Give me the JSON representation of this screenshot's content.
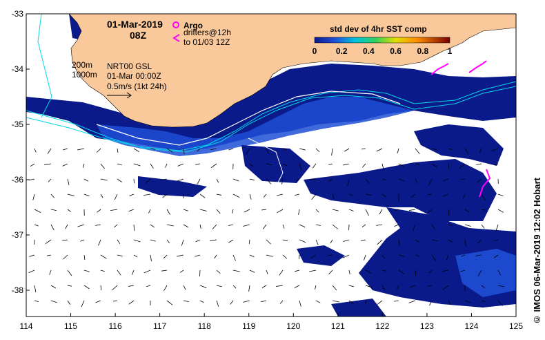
{
  "header": {
    "date": "01-Mar-2019",
    "time": "08Z"
  },
  "legend": {
    "argo_label": "Argo",
    "drifters_label_1": "drifters@12h",
    "drifters_label_2": "to 01/03 12Z",
    "colorbar_title": "std dev of 4hr SST comp",
    "colorbar_ticks": [
      "0",
      "0.2",
      "0.4",
      "0.6",
      "0.8",
      "1"
    ],
    "colorbar_values": [
      0,
      0.2,
      0.4,
      0.6,
      0.8,
      1.0
    ]
  },
  "bathymetry": {
    "contour_200": "200m",
    "contour_1000": "1000m"
  },
  "currents": {
    "source": "NRT00 GSL",
    "valid": "01-Mar 00:00Z",
    "scale": "0.5m/s (1kt 24h)"
  },
  "axes": {
    "x_ticks": [
      "114",
      "115",
      "116",
      "117",
      "118",
      "119",
      "120",
      "121",
      "122",
      "123",
      "124",
      "125"
    ],
    "y_ticks": [
      "-33",
      "-34",
      "-35",
      "-36",
      "-37",
      "-38"
    ],
    "lon_range": [
      114,
      125
    ],
    "lat_range": [
      -38.5,
      -33
    ]
  },
  "credit": "© IMOS 06-Mar-2019 12:02 Hobart",
  "colors": {
    "land": "#f9c89b",
    "sst_low": "#0a1a8a",
    "sst_mid": "#1f4fd6",
    "contour": "#00d8e8",
    "drifter": "#ff00ff"
  }
}
